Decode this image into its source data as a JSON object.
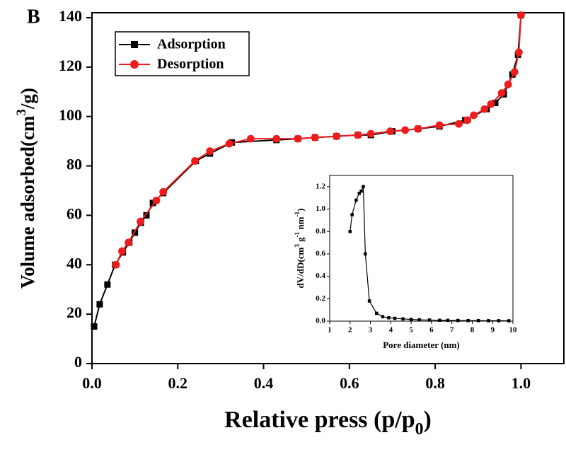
{
  "chart_data": [
    {
      "type": "line",
      "panel_label": "B",
      "xlabel": [
        {
          "text": "Relative press (p/p"
        },
        {
          "text": "0",
          "shift": "sub"
        },
        {
          "text": ")"
        }
      ],
      "ylabel": [
        {
          "text": "Volume adsorbed(cm"
        },
        {
          "text": "3",
          "shift": "super"
        },
        {
          "text": "/g)"
        }
      ],
      "xlim": [
        0,
        1.1
      ],
      "ylim": [
        0,
        142
      ],
      "xticks": [
        {
          "value": 0,
          "label": "0.0"
        },
        0.2,
        0.4,
        0.6,
        0.8,
        {
          "value": 1,
          "label": "1.0"
        }
      ],
      "yticks": [
        0,
        20,
        40,
        60,
        80,
        100,
        120,
        140
      ],
      "legend": "upper left",
      "series": [
        {
          "name": "Adsorption",
          "color": "#000000",
          "marker": "square",
          "x": [
            0.005,
            0.018,
            0.036,
            0.054,
            0.072,
            0.087,
            0.1,
            0.114,
            0.127,
            0.142,
            0.166,
            0.242,
            0.275,
            0.326,
            0.43,
            0.48,
            0.52,
            0.57,
            0.62,
            0.65,
            0.7,
            0.76,
            0.81,
            0.87,
            0.92,
            0.94,
            0.96,
            0.98,
            0.993,
            1.0
          ],
          "values": [
            15,
            24,
            32,
            40,
            45,
            49,
            53,
            57,
            60,
            65,
            69,
            82,
            85,
            89.5,
            90.5,
            91,
            91.5,
            92,
            92.5,
            92.5,
            94,
            95,
            96,
            98.5,
            103,
            105.5,
            109,
            117,
            125,
            141
          ]
        },
        {
          "name": "Desorption",
          "color": "#ee1c1c",
          "marker": "circle",
          "x": [
            1.0,
            0.995,
            0.985,
            0.97,
            0.955,
            0.93,
            0.915,
            0.89,
            0.875,
            0.855,
            0.81,
            0.76,
            0.73,
            0.695,
            0.65,
            0.62,
            0.57,
            0.52,
            0.48,
            0.43,
            0.37,
            0.32,
            0.275,
            0.24,
            0.166,
            0.15,
            0.113,
            0.085,
            0.07,
            0.056
          ],
          "values": [
            141,
            126,
            118,
            113,
            109.5,
            105,
            103,
            100.5,
            98.5,
            97,
            96.5,
            95,
            94.5,
            94,
            93,
            92.5,
            92,
            91.5,
            91,
            91,
            91,
            89,
            86,
            82,
            69.5,
            66,
            57.5,
            49,
            45.5,
            40
          ]
        }
      ]
    },
    {
      "type": "line",
      "xlabel": [
        {
          "text": "Pore diameter (nm)"
        }
      ],
      "ylabel": [
        {
          "text": "dV/dD(cm"
        },
        {
          "text": "3",
          "shift": "super"
        },
        {
          "text": " g"
        },
        {
          "text": "-1",
          "shift": "super"
        },
        {
          "text": " nm"
        },
        {
          "text": "-1",
          "shift": "super"
        },
        {
          "text": ")"
        }
      ],
      "xlim": [
        1,
        10
      ],
      "ylim": [
        0,
        1.3
      ],
      "xticks": [
        1,
        2,
        3,
        4,
        5,
        6,
        7,
        8,
        9,
        10
      ],
      "yticks": [
        {
          "value": 0,
          "label": "0.0"
        },
        0.2,
        0.4,
        0.6,
        0.8,
        {
          "value": 1,
          "label": "1.0"
        },
        1.2
      ],
      "series": [
        {
          "color": "#000000",
          "marker": "square",
          "x": [
            2.0,
            2.1,
            2.3,
            2.45,
            2.55,
            2.65,
            2.75,
            2.95,
            3.3,
            3.6,
            3.9,
            4.2,
            4.6,
            5.0,
            5.4,
            5.9,
            6.4,
            6.8,
            7.3,
            7.8,
            8.3,
            8.8,
            9.3,
            9.8
          ],
          "values": [
            0.8,
            0.95,
            1.08,
            1.14,
            1.16,
            1.2,
            0.6,
            0.18,
            0.07,
            0.04,
            0.03,
            0.025,
            0.02,
            0.015,
            0.012,
            0.01,
            0.008,
            0.007,
            0.006,
            0.005,
            0.005,
            0.004,
            0.004,
            0.003
          ]
        }
      ]
    }
  ]
}
